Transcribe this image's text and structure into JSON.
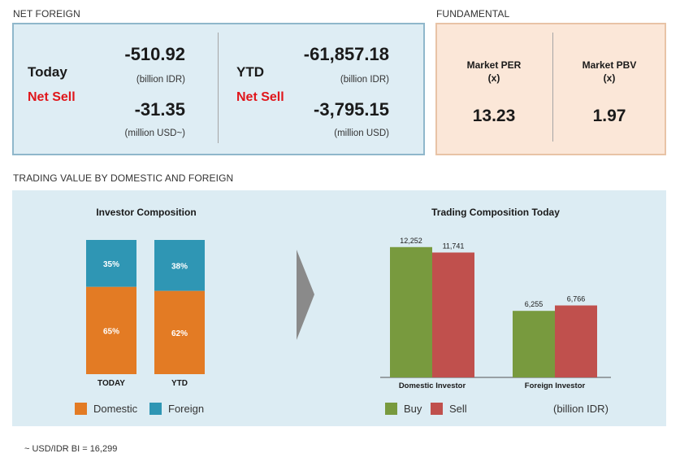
{
  "net_foreign": {
    "section_title": "NET FOREIGN",
    "today_label": "Today",
    "net_sell_label": "Net Sell",
    "today_idr": "-510.92",
    "today_idr_unit": "(billion IDR)",
    "today_usd": "-31.35",
    "today_usd_unit": "(million USD~)",
    "ytd_label": "YTD",
    "ytd_net_sell_label": "Net Sell",
    "ytd_idr": "-61,857.18",
    "ytd_idr_unit": "(billion IDR)",
    "ytd_usd": "-3,795.15",
    "ytd_usd_unit": "(million USD)"
  },
  "fundamental": {
    "section_title": "FUNDAMENTAL",
    "per_label_line1": "Market PER",
    "per_label_line2": "(x)",
    "per_value": "13.23",
    "pbv_label_line1": "Market PBV",
    "pbv_label_line2": "(x)",
    "pbv_value": "1.97"
  },
  "trading_value": {
    "section_title": "TRADING VALUE BY DOMESTIC AND FOREIGN"
  },
  "chart_data": [
    {
      "type": "bar",
      "stacked": true,
      "percent": true,
      "title": "Investor Composition",
      "categories": [
        "TODAY",
        "YTD"
      ],
      "series": [
        {
          "name": "Domestic",
          "values": [
            65,
            62
          ],
          "labels": [
            "65%",
            "62%"
          ],
          "color": "#e37b24"
        },
        {
          "name": "Foreign",
          "values": [
            35,
            38
          ],
          "labels": [
            "35%",
            "38%"
          ],
          "color": "#2f96b4"
        }
      ],
      "ylim": [
        0,
        100
      ],
      "legend": "bottom"
    },
    {
      "type": "bar",
      "title": "Trading Composition Today",
      "categories": [
        "Domestic Investor",
        "Foreign Investor"
      ],
      "series": [
        {
          "name": "Buy",
          "values": [
            12252,
            6255
          ],
          "labels": [
            "12,252",
            "6,255"
          ],
          "color": "#789a3e"
        },
        {
          "name": "Sell",
          "values": [
            11741,
            6766
          ],
          "labels": [
            "11,741",
            "6,766"
          ],
          "color": "#c0504d"
        }
      ],
      "unit_label": "(billion IDR)",
      "ylim": [
        0,
        13000
      ],
      "legend": "bottom"
    }
  ],
  "footnote": "~ USD/IDR BI = 16,299",
  "colors": {
    "arrow": "#8a8a8a",
    "red_text": "#e0161b"
  }
}
